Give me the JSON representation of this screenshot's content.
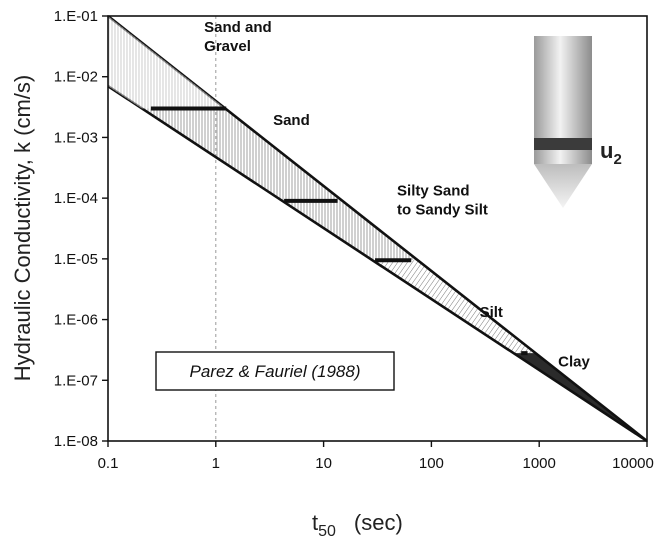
{
  "chart_data": {
    "type": "line",
    "title": "",
    "ylabel": "Hydraulic Conductivity, k (cm/s)",
    "xlabel_main": "t",
    "xlabel_sub": "50",
    "xlabel_unit": "(sec)",
    "x_scale": "log",
    "y_scale": "log",
    "xlim": [
      0.1,
      10000
    ],
    "ylim": [
      1e-08,
      0.1
    ],
    "x_ticks": [
      0.1,
      1,
      10,
      100,
      1000,
      10000
    ],
    "x_tick_labels": [
      "0.1",
      "1",
      "10",
      "100",
      "1000",
      "10000"
    ],
    "y_ticks": [
      0.1,
      0.01,
      0.001,
      0.0001,
      1e-05,
      1e-06,
      1e-07,
      1e-08
    ],
    "y_tick_labels": [
      "1.E-01",
      "1.E-02",
      "1.E-03",
      "1.E-04",
      "1.E-05",
      "1.E-06",
      "1.E-07",
      "1.E-08"
    ],
    "grid": false,
    "reference_line_x": 1,
    "bounds": {
      "upper": [
        [
          0.1,
          0.1
        ],
        [
          10000,
          1e-08
        ]
      ],
      "lower": [
        [
          0.1,
          0.007
        ],
        [
          10000,
          1e-08
        ]
      ]
    },
    "soil_boundaries": [
      {
        "t_min": 0.25,
        "t_max": 1.25,
        "k": 0.003
      },
      {
        "t_min": 4.3,
        "t_max": 13.5,
        "k": 9e-05
      },
      {
        "t_min": 30,
        "t_max": 65,
        "k": 9.5e-06
      },
      {
        "t_min": 680,
        "t_max": 780,
        "k": 2.8e-07
      }
    ],
    "zones": [
      {
        "label_lines": [
          "Sand and",
          "Gravel"
        ],
        "t": 0.78,
        "k": 0.055
      },
      {
        "label_lines": [
          "Sand"
        ],
        "t": 3.4,
        "k": 0.0016
      },
      {
        "label_lines": [
          "Silty Sand",
          "to Sandy Silt"
        ],
        "t": 48,
        "k": 0.00011
      },
      {
        "label_lines": [
          "Silt"
        ],
        "t": 280,
        "k": 1.1e-06
      },
      {
        "label_lines": [
          "Clay"
        ],
        "t": 1500,
        "k": 1.7e-07
      }
    ],
    "annotation": "Parez & Fauriel (1988)",
    "probe_label_main": "u",
    "probe_label_sub": "2"
  }
}
